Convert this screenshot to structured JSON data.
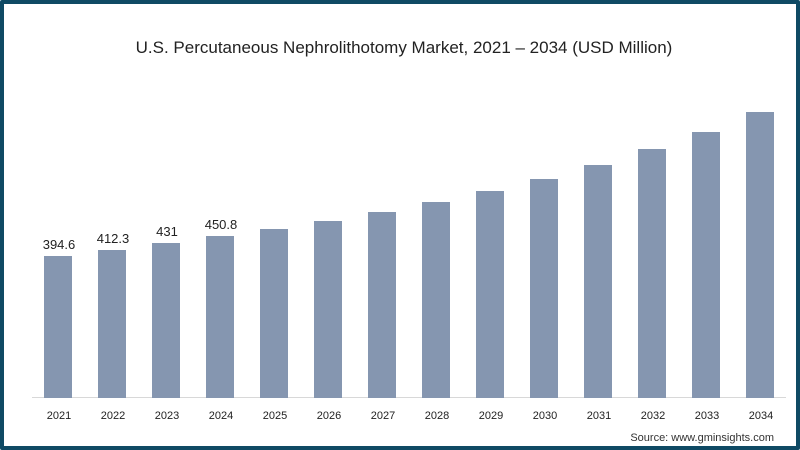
{
  "chart_data": {
    "type": "bar",
    "title": "U.S. Percutaneous Nephrolithotomy Market, 2021 – 2034 (USD Million)",
    "xlabel": "",
    "ylabel": "",
    "categories": [
      "2021",
      "2022",
      "2023",
      "2024",
      "2025",
      "2026",
      "2027",
      "2028",
      "2029",
      "2030",
      "2031",
      "2032",
      "2033",
      "2034"
    ],
    "values": [
      394.6,
      412.3,
      431,
      450.8,
      469,
      492,
      517,
      544,
      575,
      608,
      647,
      692,
      739,
      794
    ],
    "data_labels": [
      "394.6",
      "412.3",
      "431",
      "450.8",
      "",
      "",
      "",
      "",
      "",
      "",
      "",
      "",
      "",
      ""
    ],
    "ylim": [
      0,
      850
    ],
    "grid": false,
    "legend": null,
    "bar_color": "#8596b0"
  },
  "source": "Source: www.gminsights.com",
  "frame_color": "#0f4a64"
}
